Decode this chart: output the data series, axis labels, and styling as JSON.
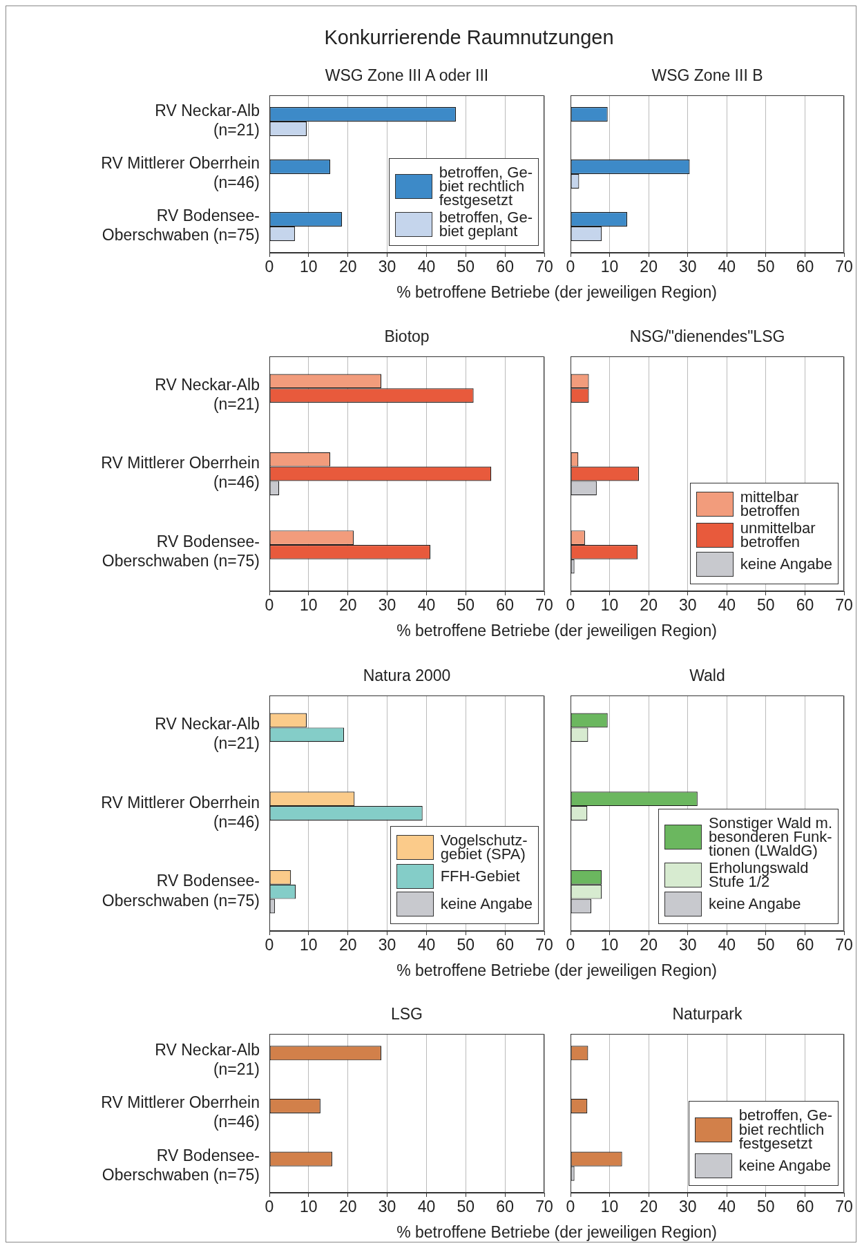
{
  "chart_data": [
    {
      "type": "bar",
      "orientation": "horizontal",
      "title": "Konkurrierende Raumnutzungen",
      "subtitle": "WSG Zone III A oder III",
      "xlabel": "% betroffene Betriebe (der jeweiligen Region)",
      "categories": [
        "RV Neckar-Alb\n(n=21)",
        "RV Mittlerer Oberrhein\n(n=46)",
        "RV Bodensee-\nOberschwaben (n=75)"
      ],
      "series": [
        {
          "name": "betroffen, Ge-\nbiet rechtlich\nfestgesetzt",
          "color": "#3d8ac8",
          "values": [
            47.5,
            15.5,
            18.5
          ]
        },
        {
          "name": "betroffen, Ge-\nbiet geplant",
          "color": "#c5d5ec",
          "values": [
            9.5,
            null,
            6.5
          ]
        }
      ],
      "xlim": [
        0,
        70
      ],
      "xticks": [
        0,
        10,
        20,
        30,
        40,
        50,
        60,
        70
      ],
      "grid": "x",
      "legend": "bottom right"
    },
    {
      "type": "bar",
      "orientation": "horizontal",
      "subtitle": "WSG Zone III B",
      "categories": [
        null,
        null,
        null
      ],
      "series": [
        {
          "color": "#3d8ac8",
          "values": [
            9.5,
            30.5,
            14.5
          ]
        },
        {
          "color": "#c5d5ec",
          "values": [
            null,
            2.2,
            8
          ]
        }
      ],
      "xlim": [
        0,
        70
      ],
      "xticks": [
        0,
        10,
        20,
        30,
        40,
        50,
        60,
        70
      ],
      "grid": "x",
      "tick_labels": "x"
    },
    {
      "type": "bar",
      "orientation": "horizontal",
      "subtitle": "Biotop",
      "xlabel": "% betroffene Betriebe (der jeweiligen Region)",
      "categories": [
        "RV Neckar-Alb\n(n=21)",
        "RV Mittlerer Oberrhein\n(n=46)",
        "RV Bodensee-\nOberschwaben (n=75)"
      ],
      "series": [
        {
          "color": "#f29c7c",
          "values": [
            28.5,
            15.5,
            21.5
          ]
        },
        {
          "color": "#e85a3c",
          "values": [
            52,
            56.5,
            41
          ]
        },
        {
          "color": "#c8c9ce",
          "values": [
            null,
            2.5,
            null
          ]
        }
      ],
      "xlim": [
        0,
        70
      ],
      "xticks": [
        0,
        10,
        20,
        30,
        40,
        50,
        60,
        70
      ],
      "grid": "x"
    },
    {
      "type": "bar",
      "orientation": "horizontal",
      "subtitle": "NSG/\"dienendes\"LSG",
      "categories": [
        null,
        null,
        null
      ],
      "series": [
        {
          "name": "mittelbar\nbetroffen",
          "color": "#f29c7c",
          "values": [
            4.7,
            2,
            3.7
          ]
        },
        {
          "name": "unmittelbar\nbetroffen",
          "color": "#e85a3c",
          "values": [
            4.7,
            17.5,
            17.2
          ]
        },
        {
          "name": "keine Angabe",
          "color": "#c8c9ce",
          "values": [
            null,
            6.7,
            1
          ]
        }
      ],
      "xlim": [
        0,
        70
      ],
      "xticks": [
        0,
        10,
        20,
        30,
        40,
        50,
        60,
        70
      ],
      "grid": "x",
      "tick_labels": "x",
      "legend": "bottom right"
    },
    {
      "type": "bar",
      "orientation": "horizontal",
      "subtitle": "Natura 2000",
      "xlabel": "% betroffene Betriebe (der jeweiligen Region)",
      "categories": [
        "RV Neckar-Alb\n(n=21)",
        "RV Mittlerer Oberrhein\n(n=46)",
        "RV Bodensee-\nOberschwaben (n=75)"
      ],
      "series": [
        {
          "name": "Vogelschutz-\ngebiet (SPA)",
          "color": "#fbcb8a",
          "values": [
            9.5,
            21.7,
            5.5
          ]
        },
        {
          "name": "FFH-Gebiet",
          "color": "#84cdc8",
          "values": [
            19,
            39,
            6.7
          ]
        },
        {
          "name": "keine Angabe",
          "color": "#c8c9ce",
          "values": [
            null,
            null,
            1.4
          ]
        }
      ],
      "xlim": [
        0,
        70
      ],
      "xticks": [
        0,
        10,
        20,
        30,
        40,
        50,
        60,
        70
      ],
      "grid": "x",
      "legend": "bottom right"
    },
    {
      "type": "bar",
      "orientation": "horizontal",
      "subtitle": "Wald",
      "categories": [
        null,
        null,
        null
      ],
      "series": [
        {
          "name": "Sonstiger Wald m.\nbesonderen Funk-\ntionen (LWaldG)",
          "color": "#6bb75f",
          "values": [
            9.5,
            32.5,
            8
          ]
        },
        {
          "name": "Erholungswald\nStufe 1/2",
          "color": "#d7ebd0",
          "values": [
            4.5,
            4.3,
            8
          ]
        },
        {
          "name": "keine Angabe",
          "color": "#c8c9ce",
          "values": [
            null,
            null,
            5.3
          ]
        }
      ],
      "xlim": [
        0,
        70
      ],
      "xticks": [
        0,
        10,
        20,
        30,
        40,
        50,
        60,
        70
      ],
      "grid": "x",
      "tick_labels": "x",
      "legend": "bottom right"
    },
    {
      "type": "bar",
      "orientation": "horizontal",
      "subtitle": "LSG",
      "xlabel": "% betroffene Betriebe (der jeweiligen Region)",
      "categories": [
        "RV Neckar-Alb\n(n=21)",
        "RV Mittlerer Oberrhein\n(n=46)",
        "RV Bodensee-\nOberschwaben (n=75)"
      ],
      "series": [
        {
          "color": "#d2804a",
          "values": [
            28.5,
            13,
            16
          ]
        },
        {
          "color": "#c8c9ce",
          "values": [
            null,
            null,
            null
          ]
        }
      ],
      "xlim": [
        0,
        70
      ],
      "xticks": [
        0,
        10,
        20,
        30,
        40,
        50,
        60,
        70
      ],
      "grid": "x"
    },
    {
      "type": "bar",
      "orientation": "horizontal",
      "subtitle": "Naturpark",
      "categories": [
        null,
        null,
        null
      ],
      "series": [
        {
          "name": "betroffen, Ge-\nbiet rechtlich\nfestgesetzt",
          "color": "#d2804a",
          "values": [
            4.5,
            4.3,
            13.2
          ]
        },
        {
          "name": "keine Angabe",
          "color": "#c8c9ce",
          "values": [
            null,
            null,
            1
          ]
        }
      ],
      "xlim": [
        0,
        70
      ],
      "xticks": [
        0,
        10,
        20,
        30,
        40,
        50,
        60,
        70
      ],
      "grid": "x",
      "tick_labels": "x",
      "legend": "bottom right"
    }
  ]
}
